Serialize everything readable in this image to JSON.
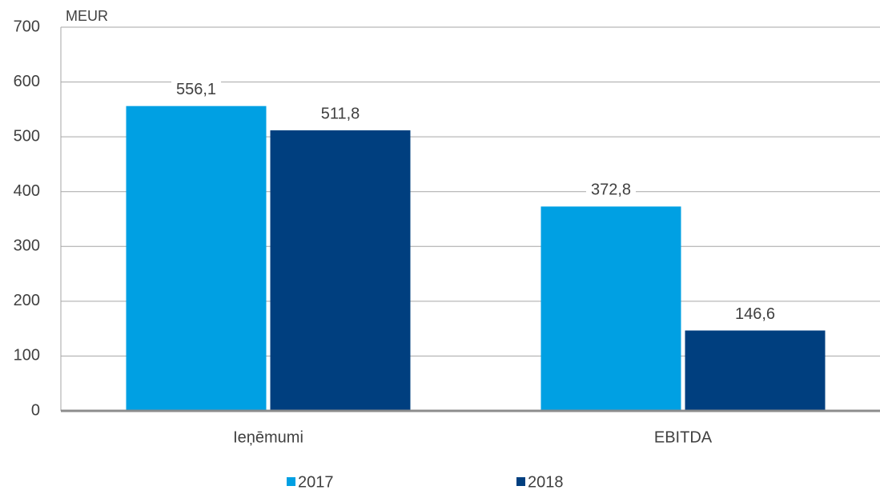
{
  "chart_data": {
    "type": "bar",
    "y_axis_label": "MEUR",
    "categories": [
      "Ieņēmumi",
      "EBITDA"
    ],
    "series": [
      {
        "name": "2017",
        "color": "#00a0e3",
        "values": [
          556.1,
          372.8
        ],
        "value_labels": [
          "556,1",
          "372,8"
        ]
      },
      {
        "name": "2018",
        "color": "#003f7f",
        "values": [
          511.8,
          146.6
        ],
        "value_labels": [
          "511,8",
          "146,6"
        ]
      }
    ],
    "ylim": [
      0,
      700
    ],
    "yticks": [
      0,
      100,
      200,
      300,
      400,
      500,
      600,
      700
    ],
    "grid": true,
    "legend": "bottom"
  }
}
